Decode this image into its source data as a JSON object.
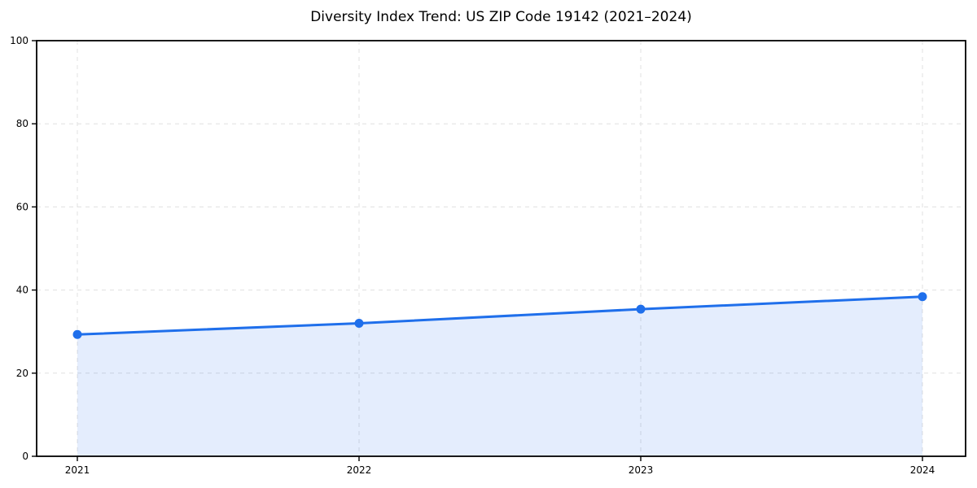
{
  "chart_data": {
    "type": "line",
    "title": "Diversity Index Trend: US ZIP Code 19142 (2021–2024)",
    "categories": [
      "2021",
      "2022",
      "2023",
      "2024"
    ],
    "values": [
      29.3,
      32.0,
      35.4,
      38.4
    ],
    "xlabel": "",
    "ylabel": "",
    "ylim": [
      0,
      100
    ],
    "yticks": [
      0,
      20,
      40,
      60,
      80,
      100
    ],
    "grid": "dashed",
    "legend": "none",
    "marker": "circle",
    "area_fill": true,
    "area_opacity": 0.12,
    "colors": {
      "line": "#1f6feb",
      "marker": "#1f6feb",
      "area": "#1f6feb",
      "grid": "#e0e0e0",
      "axis": "#000000",
      "text": "#000000",
      "background": "#ffffff"
    }
  }
}
